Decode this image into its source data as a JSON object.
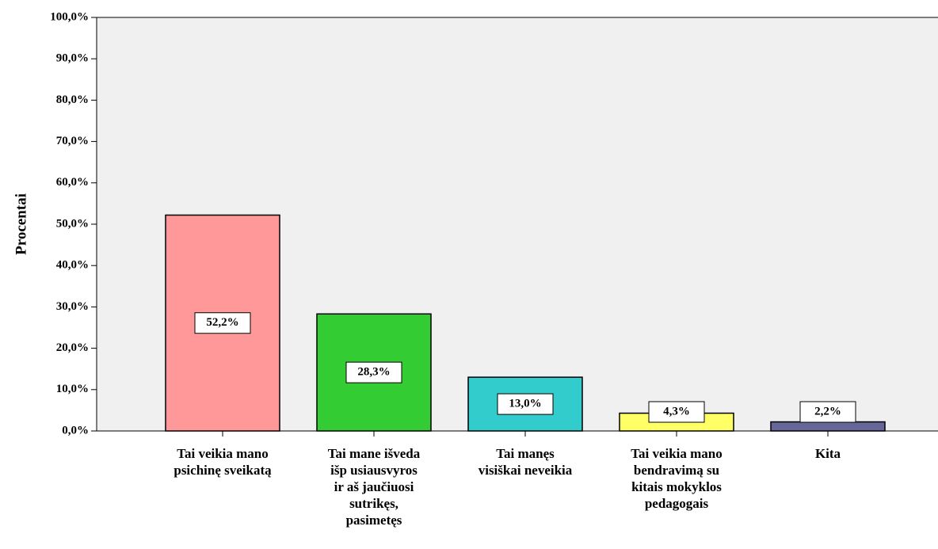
{
  "chart_data": {
    "type": "bar",
    "ylabel": "Procentai",
    "categories": [
      "Tai veikia mano\npsichinę sveikatą",
      "Tai mane išveda\nišp usiausvyros\nir aš jaučiuosi\nsutrikęs,\npasimetęs",
      "Tai manęs\nvisiškai neveikia",
      "Tai veikia mano\nbendravimą su\nkitais mokyklos\npedagogais",
      "Kita"
    ],
    "values": [
      52.2,
      28.3,
      13.0,
      4.3,
      2.2
    ],
    "value_labels": [
      "52,2%",
      "28,3%",
      "13,0%",
      "4,3%",
      "2,2%"
    ],
    "colors": [
      "#ff9999",
      "#33cc33",
      "#33cccc",
      "#ffff66",
      "#666699"
    ],
    "ylim": [
      0,
      100
    ],
    "yticks": [
      {
        "value": 0,
        "label": "0,0%"
      },
      {
        "value": 10,
        "label": "10,0%"
      },
      {
        "value": 20,
        "label": "20,0%"
      },
      {
        "value": 30,
        "label": "30,0%"
      },
      {
        "value": 40,
        "label": "40,0%"
      },
      {
        "value": 50,
        "label": "50,0%"
      },
      {
        "value": 60,
        "label": "60,0%"
      },
      {
        "value": 70,
        "label": "70,0%"
      },
      {
        "value": 80,
        "label": "80,0%"
      },
      {
        "value": 90,
        "label": "90,0%"
      },
      {
        "value": 100,
        "label": "100,0%"
      }
    ]
  }
}
